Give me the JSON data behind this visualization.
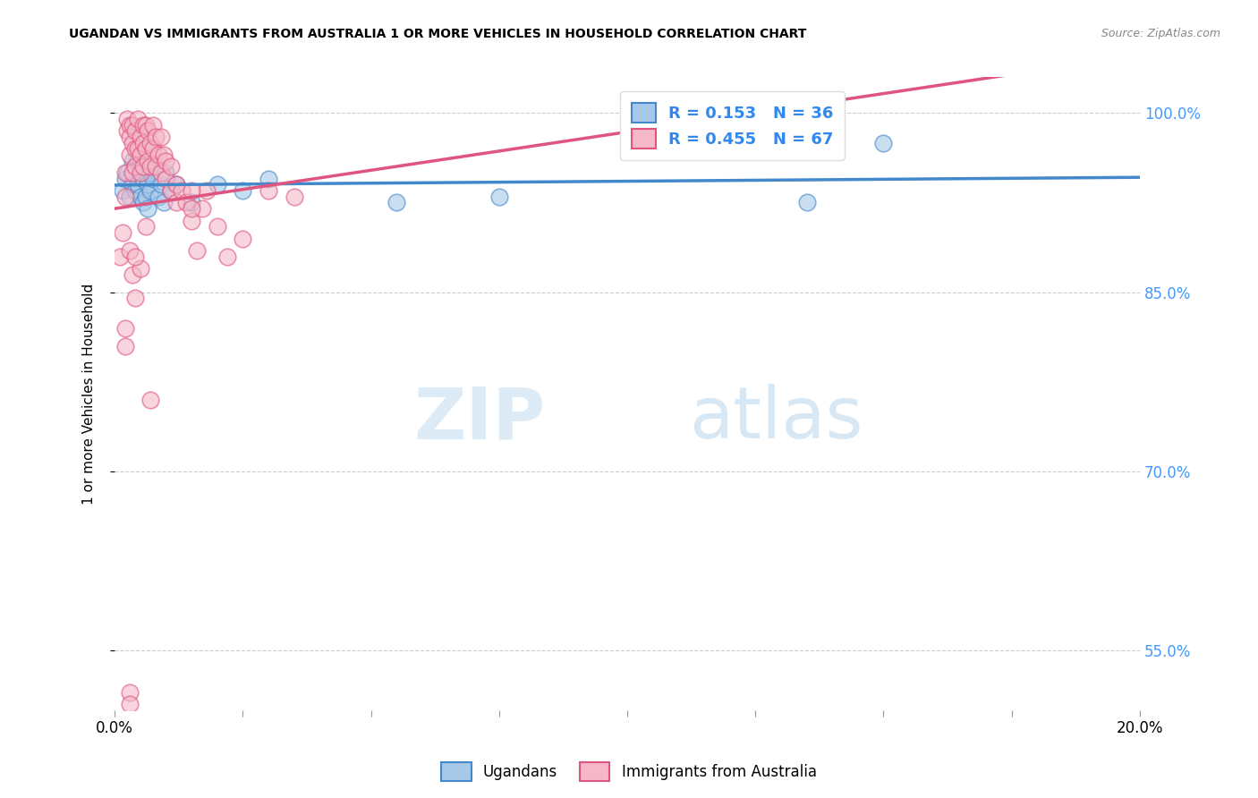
{
  "title": "UGANDAN VS IMMIGRANTS FROM AUSTRALIA 1 OR MORE VEHICLES IN HOUSEHOLD CORRELATION CHART",
  "source": "Source: ZipAtlas.com",
  "ylabel": "1 or more Vehicles in Household",
  "xlim": [
    0.0,
    20.0
  ],
  "ylim": [
    50.0,
    103.0
  ],
  "yticks": [
    55.0,
    70.0,
    85.0,
    100.0
  ],
  "xticks_shown": [
    0.0,
    20.0
  ],
  "xticks_minor": [
    2.5,
    5.0,
    7.5,
    10.0,
    12.5,
    15.0,
    17.5
  ],
  "blue_R": 0.153,
  "blue_N": 36,
  "pink_R": 0.455,
  "pink_N": 67,
  "blue_color": "#a8c8e8",
  "pink_color": "#f4b8c8",
  "blue_line_color": "#4488cc",
  "pink_line_color": "#e05580",
  "legend_label_blue": "Ugandans",
  "legend_label_pink": "Immigrants from Australia",
  "watermark_zip": "ZIP",
  "watermark_atlas": "atlas",
  "blue_x": [
    0.15,
    0.2,
    0.25,
    0.3,
    0.35,
    0.35,
    0.4,
    0.4,
    0.45,
    0.45,
    0.5,
    0.5,
    0.55,
    0.55,
    0.6,
    0.6,
    0.65,
    0.65,
    0.7,
    0.7,
    0.75,
    0.8,
    0.85,
    0.9,
    0.95,
    1.0,
    1.1,
    1.2,
    1.5,
    2.0,
    2.5,
    3.0,
    5.5,
    7.5,
    13.5,
    15.0
  ],
  "blue_y": [
    93.5,
    94.5,
    95.0,
    93.0,
    96.0,
    94.0,
    95.5,
    93.5,
    94.0,
    96.0,
    95.5,
    93.0,
    94.5,
    92.5,
    95.0,
    93.0,
    94.0,
    92.0,
    95.0,
    93.5,
    94.5,
    95.5,
    93.0,
    94.0,
    92.5,
    95.0,
    93.5,
    94.0,
    92.5,
    94.0,
    93.5,
    94.5,
    92.5,
    93.0,
    92.5,
    97.5
  ],
  "pink_x": [
    0.1,
    0.15,
    0.2,
    0.2,
    0.25,
    0.25,
    0.3,
    0.3,
    0.3,
    0.35,
    0.35,
    0.35,
    0.4,
    0.4,
    0.4,
    0.45,
    0.45,
    0.5,
    0.5,
    0.5,
    0.55,
    0.55,
    0.55,
    0.6,
    0.6,
    0.65,
    0.65,
    0.7,
    0.7,
    0.75,
    0.75,
    0.8,
    0.8,
    0.85,
    0.9,
    0.9,
    0.95,
    1.0,
    1.0,
    1.1,
    1.1,
    1.2,
    1.2,
    1.3,
    1.4,
    1.5,
    1.6,
    1.7,
    1.8,
    2.0,
    2.2,
    2.5,
    3.0,
    3.5,
    0.2,
    0.2,
    0.3,
    0.35,
    0.4,
    0.5,
    0.6,
    0.7,
    1.5,
    1.5,
    0.3,
    0.3,
    0.4
  ],
  "pink_y": [
    88.0,
    90.0,
    95.0,
    93.0,
    99.5,
    98.5,
    99.0,
    98.0,
    96.5,
    99.0,
    97.5,
    95.0,
    98.5,
    97.0,
    95.5,
    99.5,
    97.0,
    98.0,
    96.5,
    95.0,
    99.0,
    97.5,
    95.5,
    99.0,
    97.0,
    98.5,
    96.0,
    97.5,
    95.5,
    99.0,
    97.0,
    98.0,
    95.5,
    96.5,
    98.0,
    95.0,
    96.5,
    96.0,
    94.5,
    95.5,
    93.5,
    94.0,
    92.5,
    93.5,
    92.5,
    91.0,
    88.5,
    92.0,
    93.5,
    90.5,
    88.0,
    89.5,
    93.5,
    93.0,
    82.0,
    80.5,
    88.5,
    86.5,
    84.5,
    87.0,
    90.5,
    76.0,
    93.5,
    92.0,
    51.5,
    50.5,
    88.0
  ]
}
